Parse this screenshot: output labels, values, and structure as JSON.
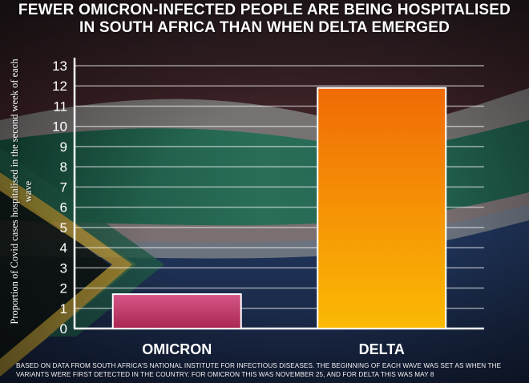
{
  "header": {
    "title_line1": "FEWER OMICRON-INFECTED PEOPLE ARE BEING HOSPITALISED",
    "title_line2": "IN SOUTH AFRICA THAN WHEN DELTA EMERGED"
  },
  "chart_data": {
    "type": "bar",
    "title": "FEWER OMICRON-INFECTED PEOPLE ARE BEING HOSPITALISED IN SOUTH AFRICA THAN WHEN DELTA EMERGED",
    "categories": [
      "OMICRON",
      "DELTA"
    ],
    "values": [
      1.7,
      11.9
    ],
    "xlabel": "",
    "ylabel": "Proportion of Covid cases hospitalised in the second week of each wave",
    "ylim": [
      0,
      13
    ],
    "yticks": [
      0,
      1,
      2,
      3,
      4,
      5,
      6,
      7,
      8,
      9,
      10,
      11,
      12,
      13
    ],
    "grid": true,
    "legend": "none",
    "bar_colors": [
      {
        "top": "#d6578a",
        "bottom": "#a8264f"
      },
      {
        "top": "#f06a06",
        "bottom": "#fbba04"
      }
    ]
  },
  "footnote": "Based on data from South Africa's National Institute for Infectious Diseases. The beginning of each wave was set as when the variants were first detected in the country. For Omicron this was November 25, and for Delta this was May 8",
  "colors": {
    "flag_green": "#1f5e4a",
    "flag_red": "#6e2a2e",
    "flag_blue": "#1c2f52",
    "flag_yellow": "#b89a35",
    "text": "#ffffff"
  }
}
